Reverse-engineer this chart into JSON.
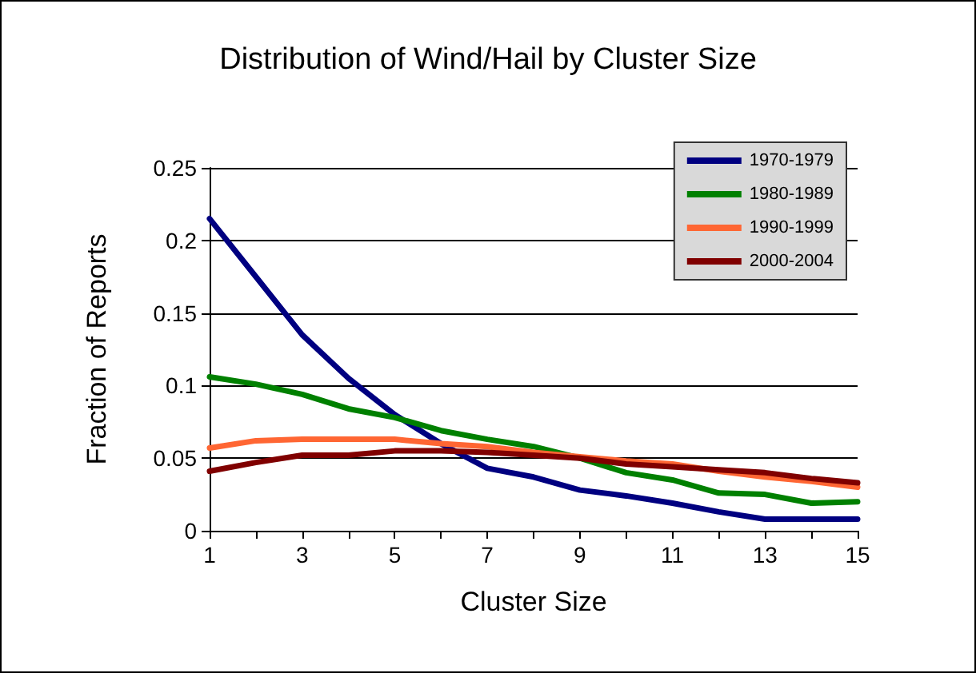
{
  "chart_data": {
    "type": "line",
    "title": "Distribution of Wind/Hail by Cluster Size",
    "xlabel": "Cluster Size",
    "ylabel": "Fraction of Reports",
    "x": [
      1,
      2,
      3,
      4,
      5,
      6,
      7,
      8,
      9,
      10,
      11,
      12,
      13,
      14,
      15
    ],
    "series": [
      {
        "name": "1970-1979",
        "color": "#000080",
        "values": [
          0.215,
          0.175,
          0.135,
          0.105,
          0.08,
          0.06,
          0.043,
          0.037,
          0.028,
          0.024,
          0.019,
          0.013,
          0.008,
          0.008,
          0.008
        ]
      },
      {
        "name": "1980-1989",
        "color": "#008000",
        "values": [
          0.106,
          0.101,
          0.094,
          0.084,
          0.078,
          0.069,
          0.063,
          0.058,
          0.05,
          0.04,
          0.035,
          0.026,
          0.025,
          0.019,
          0.02
        ]
      },
      {
        "name": "1990-1999",
        "color": "#ff6633",
        "values": [
          0.057,
          0.062,
          0.063,
          0.063,
          0.063,
          0.06,
          0.058,
          0.054,
          0.051,
          0.048,
          0.046,
          0.041,
          0.037,
          0.034,
          0.03
        ]
      },
      {
        "name": "2000-2004",
        "color": "#800000",
        "values": [
          0.041,
          0.047,
          0.052,
          0.052,
          0.055,
          0.055,
          0.054,
          0.052,
          0.05,
          0.046,
          0.044,
          0.042,
          0.04,
          0.036,
          0.033
        ]
      }
    ],
    "xlim": [
      1,
      15
    ],
    "xticks": [
      1,
      {
        "value": 2,
        "label": null
      },
      3,
      {
        "value": 4,
        "label": null
      },
      5,
      {
        "value": 6,
        "label": null
      },
      7,
      {
        "value": 8,
        "label": null
      },
      9,
      {
        "value": 10,
        "label": null
      },
      11,
      {
        "value": 12,
        "label": null
      },
      13,
      {
        "value": 14,
        "label": null
      },
      15
    ],
    "ylim": [
      0,
      0.25
    ],
    "yticks": [
      0,
      0.05,
      0.1,
      0.15,
      0.2,
      0.25
    ],
    "grid": "y",
    "legend": "top right",
    "marker": "none",
    "line_style": "solid"
  }
}
